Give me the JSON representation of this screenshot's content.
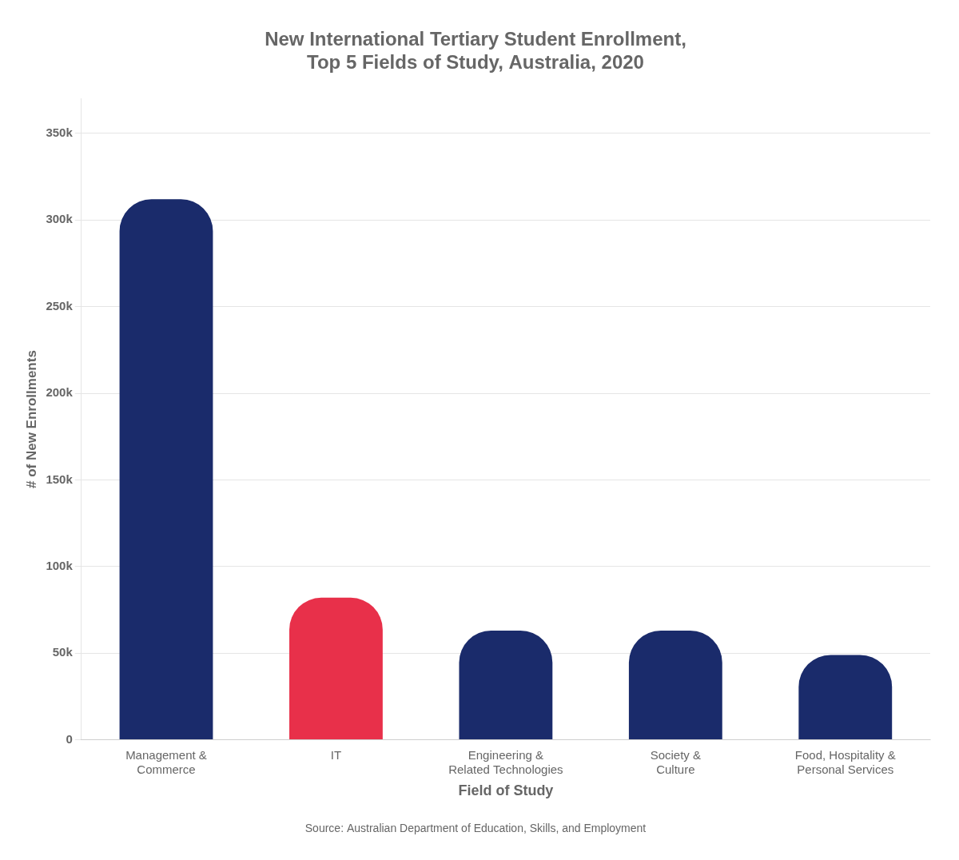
{
  "chart_data": {
    "type": "bar",
    "title": "New International Tertiary Student Enrollment,\nTop 5 Fields of Study, Australia, 2020",
    "categories": [
      "Management &\nCommerce",
      "IT",
      "Engineering &\nRelated Technologies",
      "Society &\nCulture",
      "Food, Hospitality &\nPersonal Services"
    ],
    "values": [
      312000,
      82000,
      63000,
      63000,
      49000
    ],
    "colors": [
      "#1a2b6b",
      "#e8304a",
      "#1a2b6b",
      "#1a2b6b",
      "#1a2b6b"
    ],
    "ylabel": "# of New Enrollments",
    "xlabel": "Field of Study",
    "ylim": [
      0,
      370000
    ],
    "yticks": [
      0,
      {
        "value": 50000,
        "label": "50k"
      },
      {
        "value": 100000,
        "label": "100k"
      },
      {
        "value": 150000,
        "label": "150k"
      },
      {
        "value": 200000,
        "label": "200k"
      },
      {
        "value": 250000,
        "label": "250k"
      },
      {
        "value": 300000,
        "label": "300k"
      },
      {
        "value": 350000,
        "label": "350k"
      }
    ],
    "grid": true,
    "annotations": [
      "Source: Australian Department of Education, Skills, and Employment"
    ]
  }
}
